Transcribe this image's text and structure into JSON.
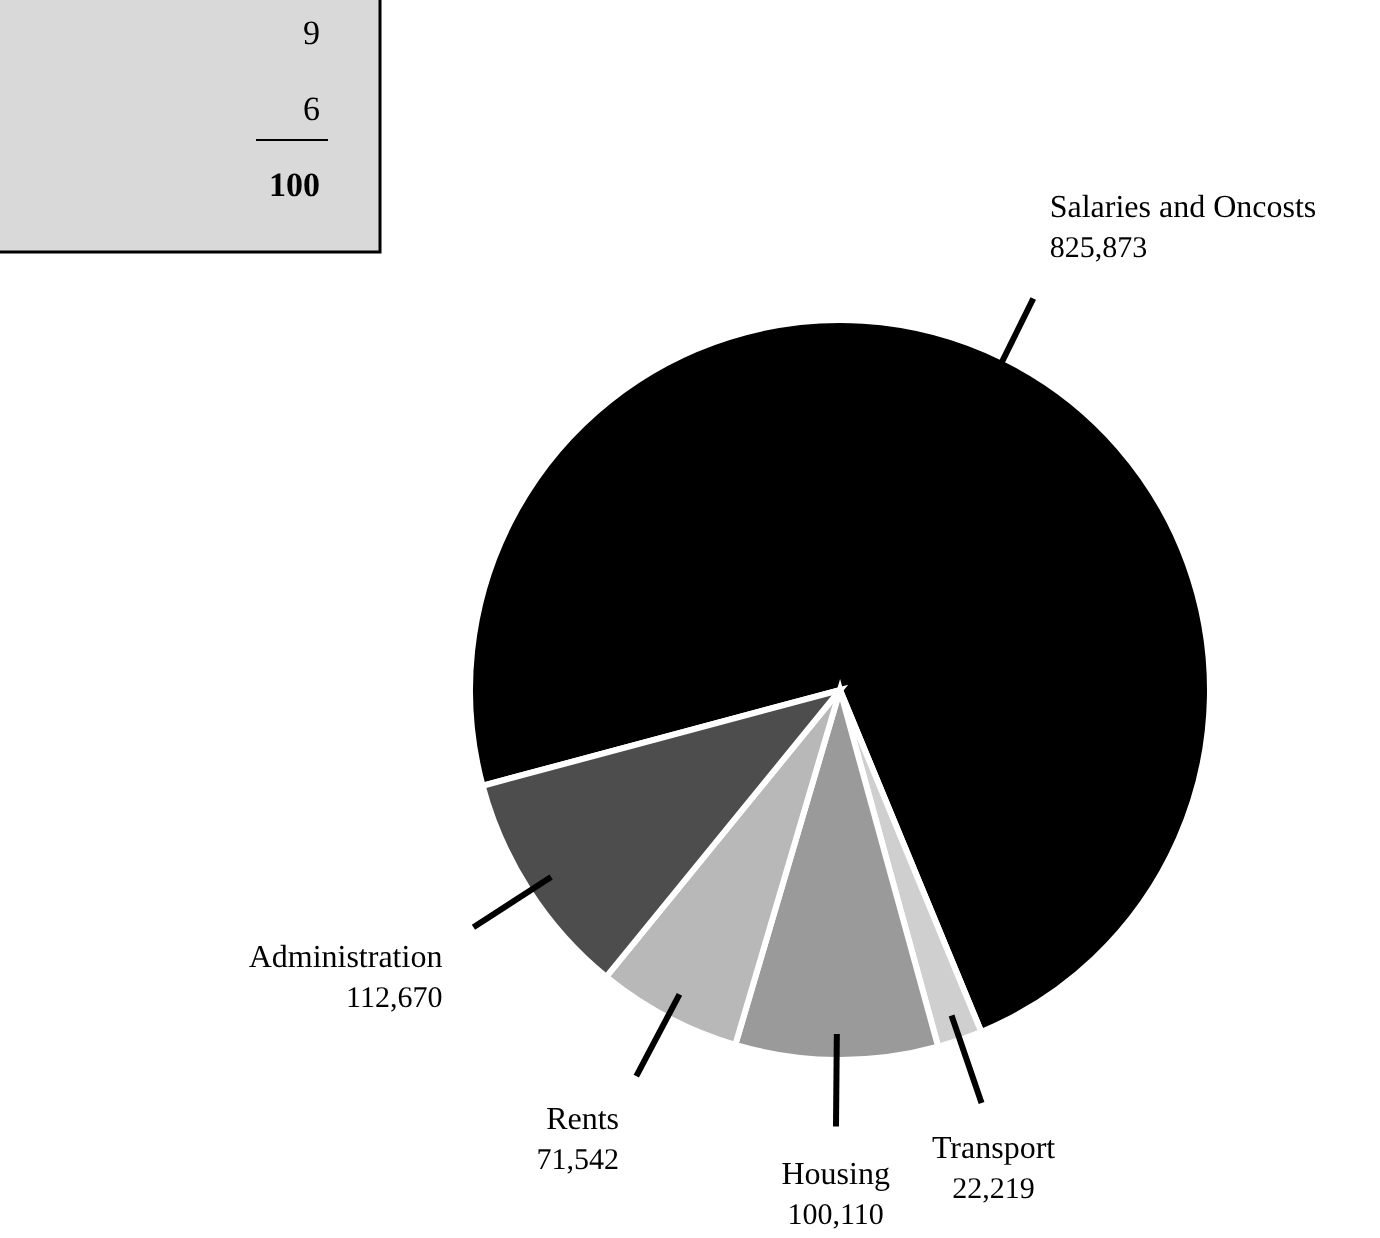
{
  "chart_data": {
    "type": "pie",
    "categories": [
      "Salaries and Oncosts",
      "Transport",
      "Housing",
      "Rents",
      "Administration"
    ],
    "values": [
      825873,
      22219,
      100110,
      71542,
      112670
    ],
    "value_labels": [
      "825,873",
      "22,219",
      "100,110",
      "71,542",
      "112,670"
    ],
    "colors": [
      "#000000",
      "#cfcfcf",
      "#9a9a9a",
      "#b8b8b8",
      "#4d4d4d"
    ],
    "annotations": [
      "9",
      "6",
      "100"
    ]
  }
}
